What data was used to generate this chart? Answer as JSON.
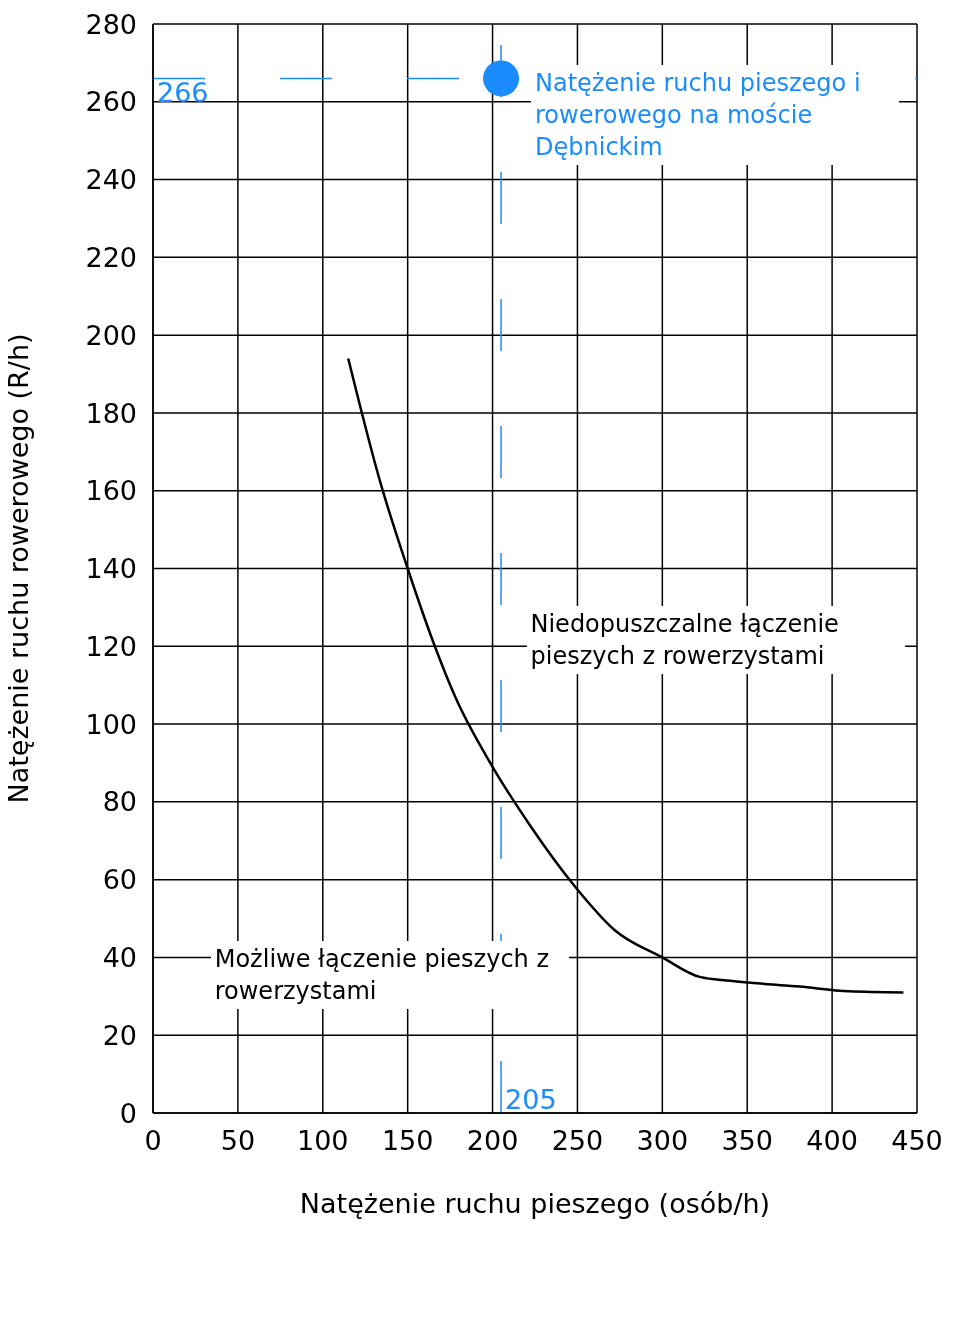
{
  "chart_data": {
    "type": "line",
    "xlabel": "Natężenie ruchu pieszego (osób/h)",
    "ylabel": "Natężenie ruchu rowerowego (R/h)",
    "xlim": [
      0,
      450
    ],
    "xticks": [
      0,
      50,
      100,
      150,
      200,
      250,
      300,
      350,
      400,
      450
    ],
    "ylim": [
      0,
      280
    ],
    "yticks": [
      0,
      20,
      40,
      60,
      80,
      100,
      120,
      140,
      160,
      180,
      200,
      220,
      240,
      260,
      280
    ],
    "grid": true,
    "legend": false,
    "series": [
      {
        "type": "line",
        "color": "#000000",
        "marker": "none",
        "x": [
          115,
          134,
          150,
          166,
          178,
          200,
          222,
          249,
          272,
          300,
          322,
          340,
          381,
          410,
          442
        ],
        "values": [
          194,
          162,
          140,
          120,
          107,
          89,
          74,
          58,
          47,
          40,
          35,
          34,
          32.5,
          31.3,
          31
        ]
      },
      {
        "type": "scatter",
        "color": "#1a8cff",
        "marker": "circle",
        "x": [
          205
        ],
        "values": [
          266
        ]
      }
    ],
    "ref_lines": [
      {
        "axis": "y",
        "value": 266,
        "label": "266",
        "color": "#1a8cff",
        "line_style": "dashed"
      },
      {
        "axis": "x",
        "value": 205,
        "label": "205",
        "color": "#1a8cff",
        "line_style": "dashed"
      }
    ],
    "annotations": [
      {
        "text": "Natężenie ruchu pieszego i rowerowego na moście Dębnickim",
        "x": 205,
        "y": 266
      },
      "Niedopuszczalne łączenie pieszych z rowerzystami",
      "Możliwe łączenie pieszych z rowerzystami"
    ]
  }
}
